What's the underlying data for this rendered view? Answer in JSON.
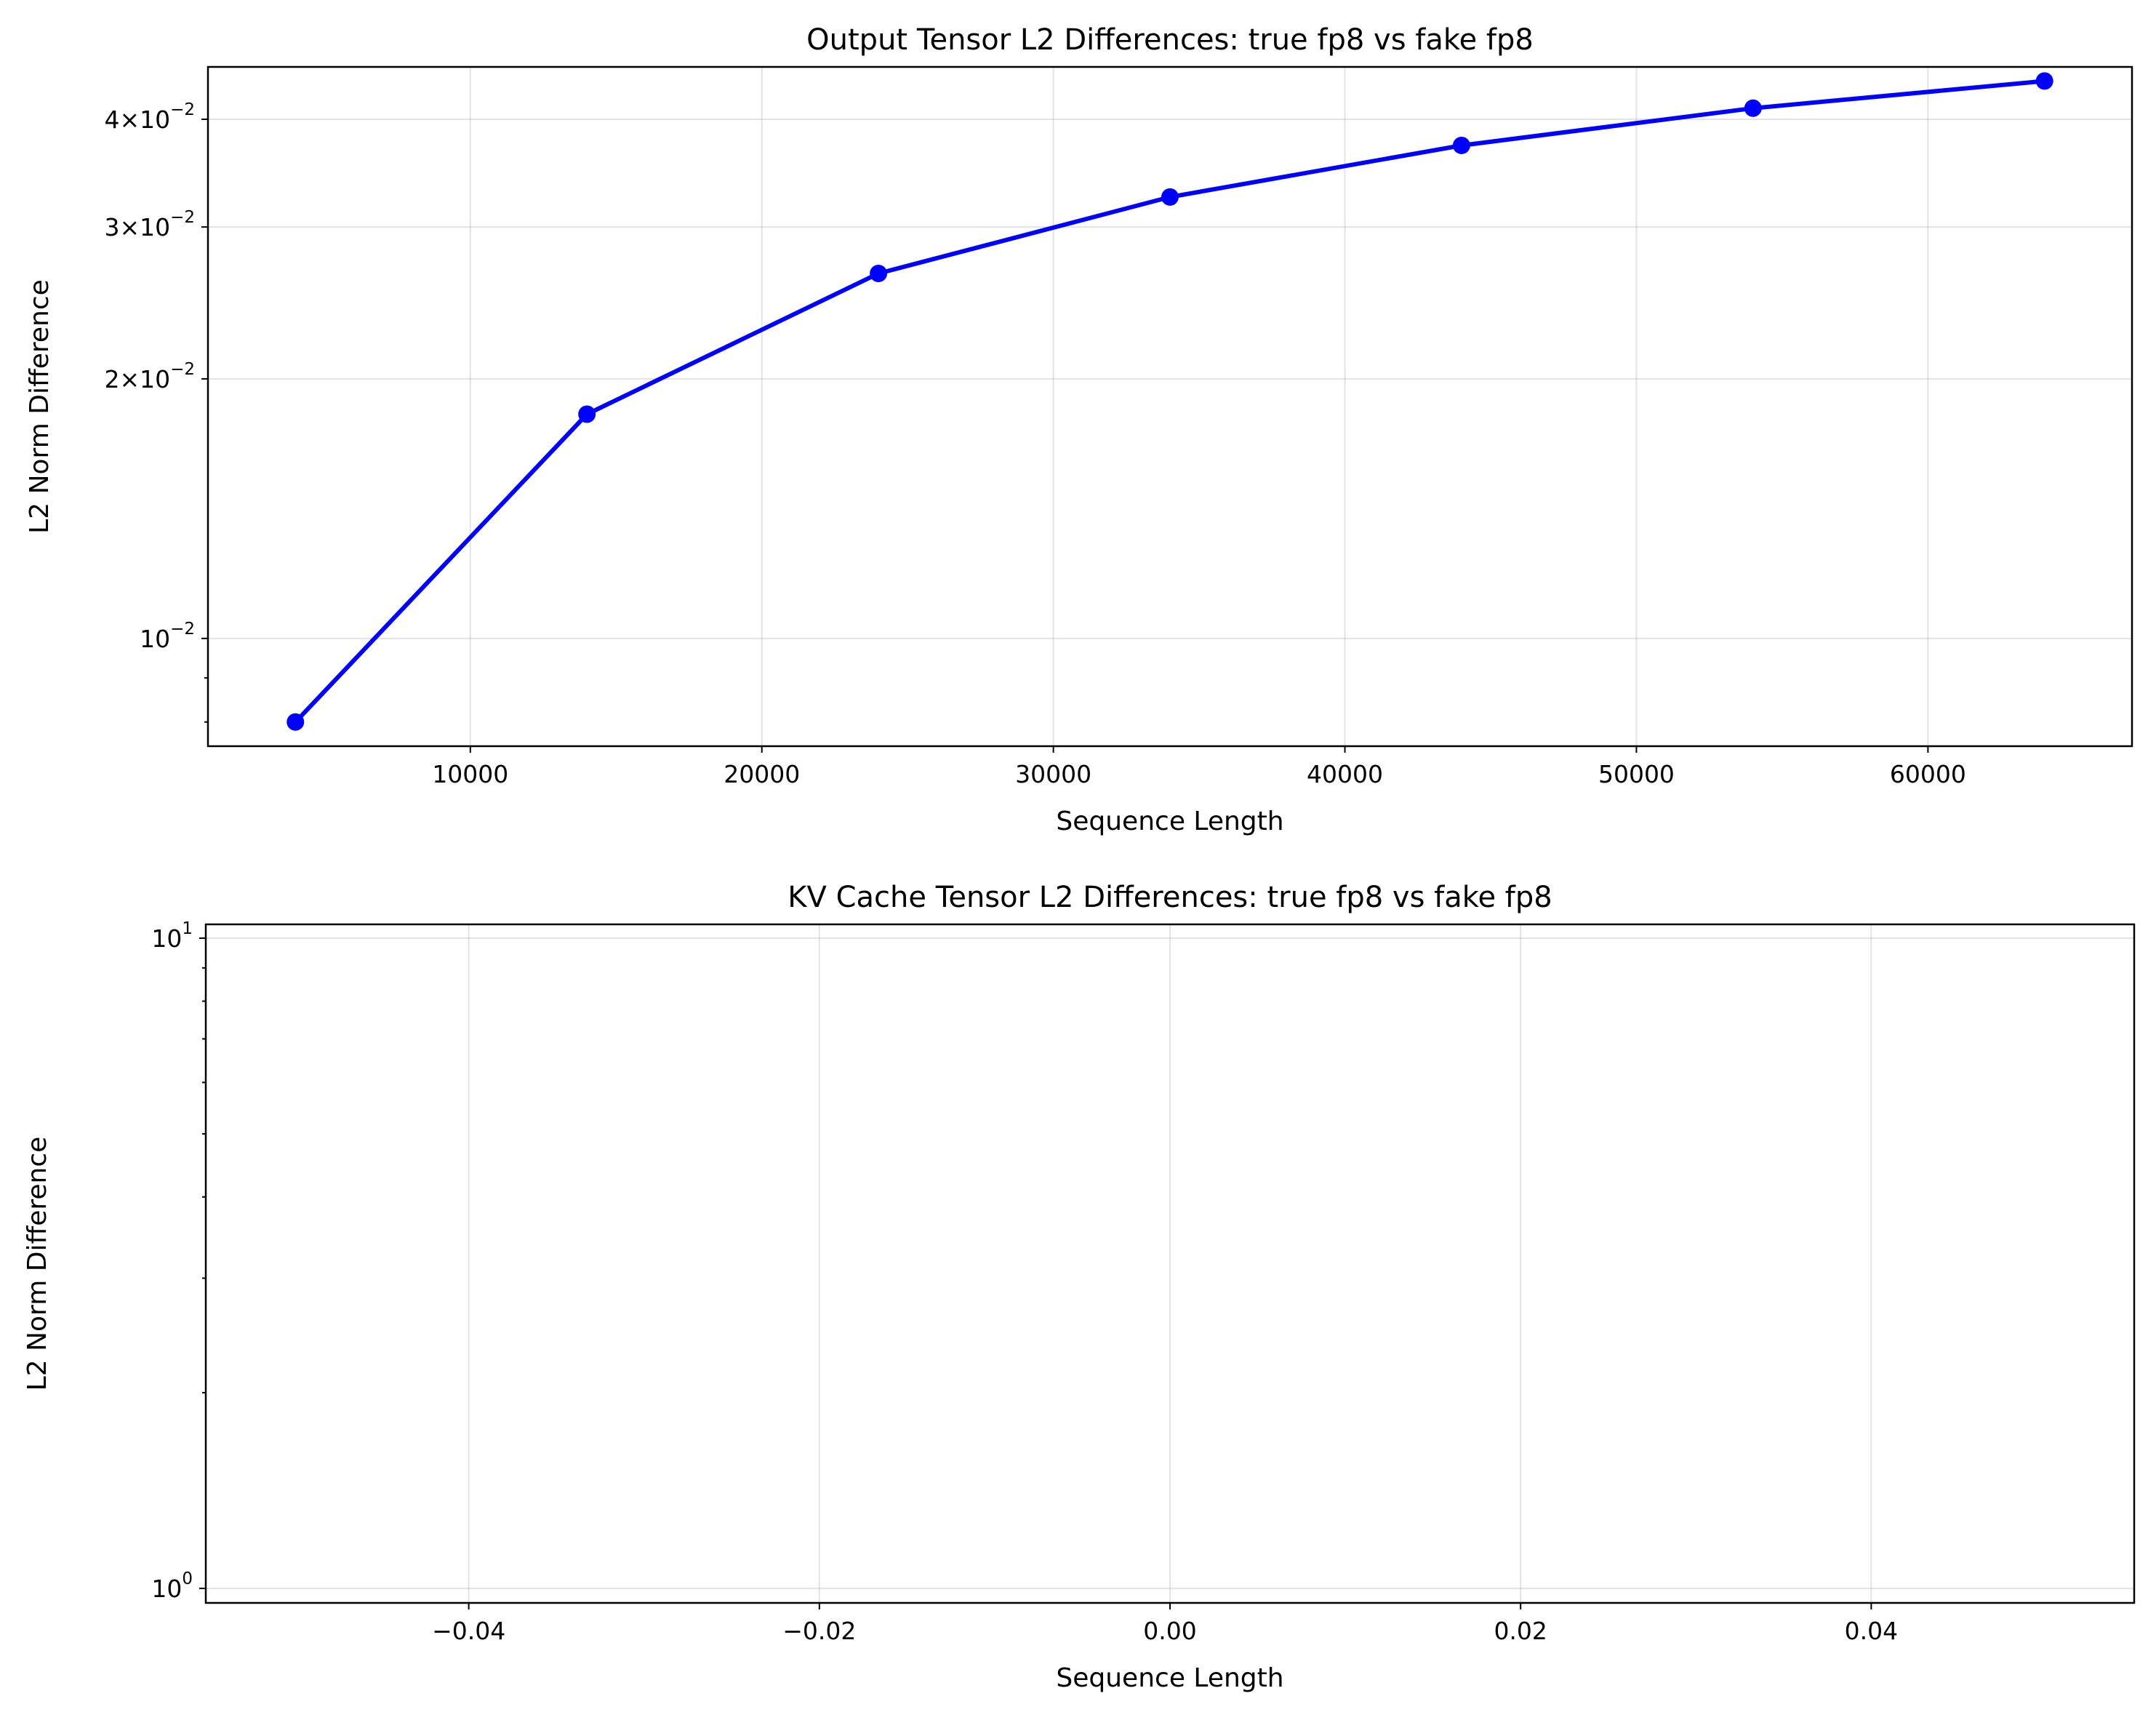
{
  "chart_data": [
    {
      "type": "line",
      "title": "Output Tensor L2 Differences: true fp8 vs fake fp8",
      "xlabel": "Sequence Length",
      "ylabel": "L2 Norm Difference",
      "xlim": [
        1000,
        67000
      ],
      "ylim": [
        0.0075,
        0.046
      ],
      "yscale": "log",
      "grid": true,
      "x_ticks": [
        10000,
        20000,
        30000,
        40000,
        50000,
        60000
      ],
      "x_tick_labels": [
        "10000",
        "20000",
        "30000",
        "40000",
        "50000",
        "60000"
      ],
      "y_major_ticks": [
        {
          "value": 0.01,
          "mantissa": "",
          "exponent": "−2"
        },
        {
          "value": 0.02,
          "mantissa": "2",
          "exponent": "−2"
        },
        {
          "value": 0.03,
          "mantissa": "3",
          "exponent": "−2"
        },
        {
          "value": 0.04,
          "mantissa": "4",
          "exponent": "−2"
        }
      ],
      "y_minor_ticks": [
        0.008,
        0.009
      ],
      "series": [
        {
          "color": "#0000ff",
          "marker": "circle",
          "x": [
            4000,
            14000,
            24000,
            34000,
            44000,
            54000,
            64000
          ],
          "y": [
            0.008,
            0.0182,
            0.0265,
            0.0325,
            0.0373,
            0.0412,
            0.0443
          ]
        }
      ]
    },
    {
      "type": "line",
      "title": "KV Cache Tensor L2 Differences: true fp8 vs fake fp8",
      "xlabel": "Sequence Length",
      "ylabel": "L2 Norm Difference",
      "xlim": [
        -0.055,
        0.055
      ],
      "ylim": [
        0.95,
        10.5
      ],
      "yscale": "log",
      "grid": true,
      "x_ticks": [
        -0.04,
        -0.02,
        0.0,
        0.02,
        0.04
      ],
      "x_tick_labels": [
        "−0.04",
        "−0.02",
        "0.00",
        "0.02",
        "0.04"
      ],
      "y_major_ticks": [
        {
          "value": 1,
          "mantissa": "",
          "exponent": "0"
        },
        {
          "value": 10,
          "mantissa": "",
          "exponent": "1"
        }
      ],
      "y_minor_ticks": [
        2,
        3,
        4,
        5,
        6,
        7,
        8,
        9
      ],
      "series": []
    }
  ]
}
